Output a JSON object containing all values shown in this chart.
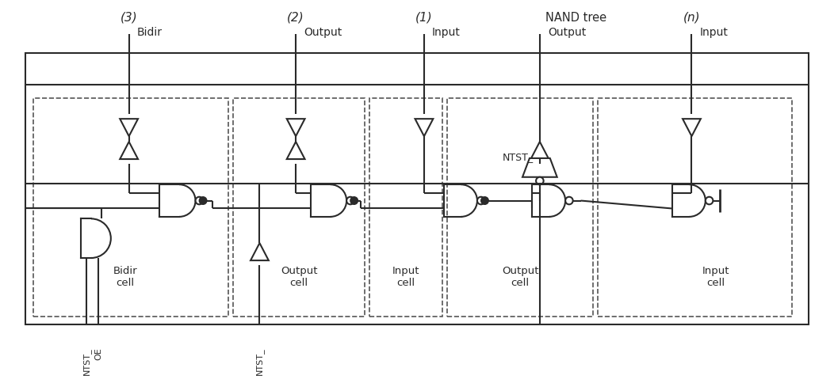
{
  "bg_color": "#ffffff",
  "line_color": "#2a2a2a",
  "lw": 1.5,
  "fig_width": 10.52,
  "fig_height": 4.85,
  "labels": {
    "title3": "(3)",
    "bidir": "Bidir",
    "title2": "(2)",
    "output2": "Output",
    "title1": "(1)",
    "input1": "Input",
    "nand_tree": "NAND tree",
    "nand_output": "Output",
    "titlen": "(n)",
    "inputn": "Input",
    "ntst_label": "NTST_",
    "bidir_cell": "Bidir\ncell",
    "output_cell": "Output\ncell",
    "input_cell1": "Input\ncell",
    "output_cell2": "Output\ncell",
    "input_celln": "Input\ncell",
    "ntst1": "NTST_",
    "oe": "OE",
    "ntst2": "NTST_"
  }
}
